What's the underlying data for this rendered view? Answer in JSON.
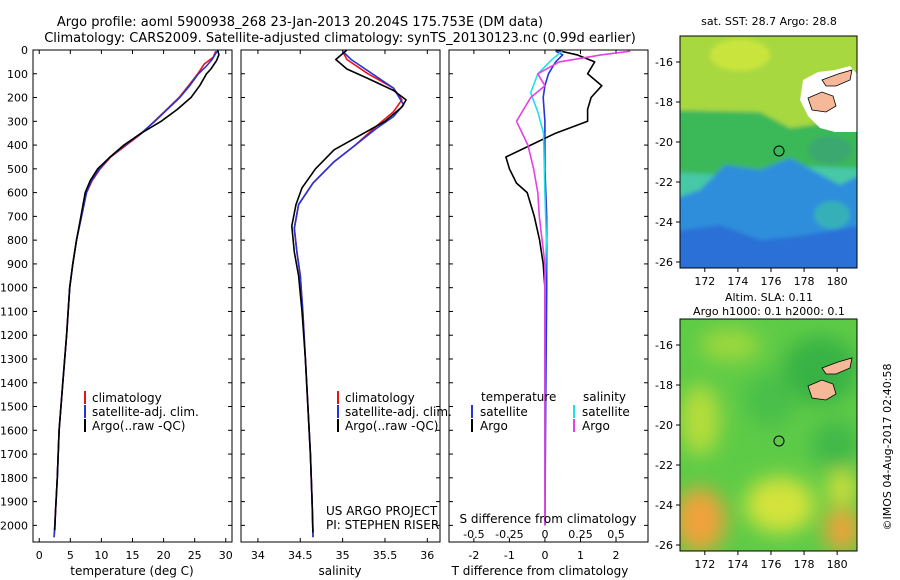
{
  "header": {
    "line1": "Argo profile: aoml 5900938_268 23-Jan-2013 20.204S 175.753E (DM data)",
    "line2": "Climatology: CARS2009. Satellite-adjusted climatology: synTS_20130123.nc (0.99d earlier)"
  },
  "footer_stamp": "©IMOS 04-Aug-2017 02:40:58",
  "colors": {
    "climatology": "#e8121b",
    "satellite": "#2434d8",
    "argo": "#000000",
    "sal_satellite": "#22e0e8",
    "sal_argo": "#e640e6",
    "land": "#f5b898"
  },
  "chart_data": [
    {
      "type": "line",
      "title": "",
      "xlabel": "temperature (deg C)",
      "ylabel": "",
      "xlim": [
        -1,
        31
      ],
      "ylim": [
        2070,
        0
      ],
      "x_ticks": [
        0,
        5,
        10,
        15,
        20,
        25,
        30
      ],
      "y_ticks": [
        0,
        100,
        200,
        300,
        400,
        500,
        600,
        700,
        800,
        900,
        1000,
        1100,
        1200,
        1300,
        1400,
        1500,
        1600,
        1700,
        1800,
        1900,
        2000
      ],
      "legend": [
        "climatology",
        "satellite-adj. clim.",
        "Argo(..raw -QC)"
      ],
      "series": [
        {
          "name": "climatology",
          "color": "#e8121b",
          "points": [
            [
              28.4,
              5
            ],
            [
              28.0,
              30
            ],
            [
              26.5,
              60
            ],
            [
              25.5,
              100
            ],
            [
              24.0,
              150
            ],
            [
              22.5,
              200
            ],
            [
              20.5,
              250
            ],
            [
              18.5,
              300
            ],
            [
              16.5,
              350
            ],
            [
              14.0,
              400
            ],
            [
              11.5,
              450
            ],
            [
              9.8,
              500
            ],
            [
              8.5,
              550
            ],
            [
              7.6,
              600
            ],
            [
              6.8,
              700
            ],
            [
              6.0,
              800
            ],
            [
              5.4,
              900
            ],
            [
              4.9,
              1000
            ],
            [
              4.4,
              1200
            ],
            [
              3.8,
              1400
            ],
            [
              3.2,
              1600
            ],
            [
              2.9,
              1800
            ],
            [
              2.5,
              2000
            ],
            [
              2.4,
              2050
            ]
          ]
        },
        {
          "name": "satellite-adj. clim.",
          "color": "#2434d8",
          "points": [
            [
              28.6,
              5
            ],
            [
              27.8,
              40
            ],
            [
              26.8,
              70
            ],
            [
              25.6,
              100
            ],
            [
              24.2,
              150
            ],
            [
              22.6,
              200
            ],
            [
              20.6,
              250
            ],
            [
              18.6,
              300
            ],
            [
              16.4,
              350
            ],
            [
              13.8,
              400
            ],
            [
              11.4,
              450
            ],
            [
              9.7,
              500
            ],
            [
              8.4,
              550
            ],
            [
              7.6,
              600
            ],
            [
              6.8,
              700
            ],
            [
              6.0,
              800
            ],
            [
              5.4,
              900
            ],
            [
              4.9,
              1000
            ],
            [
              4.4,
              1200
            ],
            [
              3.8,
              1400
            ],
            [
              3.2,
              1600
            ],
            [
              2.9,
              1800
            ],
            [
              2.5,
              2000
            ],
            [
              2.4,
              2050
            ]
          ]
        },
        {
          "name": "Argo(..raw -QC)",
          "color": "#000000",
          "points": [
            [
              28.7,
              0
            ],
            [
              28.9,
              20
            ],
            [
              28.5,
              45
            ],
            [
              27.6,
              80
            ],
            [
              26.9,
              100
            ],
            [
              25.8,
              150
            ],
            [
              24.4,
              200
            ],
            [
              22.2,
              250
            ],
            [
              19.6,
              300
            ],
            [
              16.4,
              350
            ],
            [
              13.6,
              400
            ],
            [
              11.4,
              450
            ],
            [
              9.4,
              500
            ],
            [
              8.2,
              550
            ],
            [
              7.4,
              600
            ],
            [
              6.7,
              700
            ],
            [
              6.0,
              800
            ],
            [
              5.4,
              900
            ],
            [
              4.9,
              1000
            ],
            [
              4.4,
              1200
            ],
            [
              3.8,
              1400
            ],
            [
              3.2,
              1600
            ],
            [
              2.9,
              1800
            ],
            [
              2.6,
              1950
            ],
            [
              2.5,
              2020
            ]
          ]
        }
      ]
    },
    {
      "type": "line",
      "title": "",
      "xlabel": "salinity",
      "ylabel": "",
      "xlim": [
        33.8,
        36.15
      ],
      "ylim": [
        2070,
        0
      ],
      "x_ticks": [
        34,
        34.5,
        35,
        35.5,
        36
      ],
      "legend": [
        "climatology",
        "satellite-adj. clim.",
        "Argo(..raw -QC)"
      ],
      "annotation": [
        "US ARGO PROJECT",
        "PI: STEPHEN RISER"
      ],
      "series": [
        {
          "name": "climatology",
          "color": "#e8121b",
          "points": [
            [
              35.0,
              5
            ],
            [
              35.05,
              40
            ],
            [
              35.3,
              100
            ],
            [
              35.6,
              160
            ],
            [
              35.7,
              210
            ],
            [
              35.6,
              260
            ],
            [
              35.4,
              320
            ],
            [
              35.15,
              400
            ],
            [
              34.9,
              470
            ],
            [
              34.65,
              560
            ],
            [
              34.48,
              650
            ],
            [
              34.43,
              750
            ],
            [
              34.46,
              850
            ],
            [
              34.5,
              950
            ],
            [
              34.53,
              1100
            ],
            [
              34.56,
              1300
            ],
            [
              34.59,
              1500
            ],
            [
              34.62,
              1700
            ],
            [
              34.64,
              1900
            ],
            [
              34.65,
              2050
            ]
          ]
        },
        {
          "name": "satellite-adj. clim.",
          "color": "#2434d8",
          "points": [
            [
              35.0,
              5
            ],
            [
              35.1,
              40
            ],
            [
              35.35,
              100
            ],
            [
              35.6,
              160
            ],
            [
              35.72,
              230
            ],
            [
              35.6,
              280
            ],
            [
              35.4,
              330
            ],
            [
              35.15,
              400
            ],
            [
              34.9,
              470
            ],
            [
              34.65,
              560
            ],
            [
              34.48,
              650
            ],
            [
              34.43,
              750
            ],
            [
              34.46,
              850
            ],
            [
              34.5,
              950
            ],
            [
              34.53,
              1100
            ],
            [
              34.56,
              1300
            ],
            [
              34.59,
              1500
            ],
            [
              34.62,
              1700
            ],
            [
              34.64,
              1900
            ],
            [
              34.65,
              2050
            ]
          ]
        },
        {
          "name": "Argo(..raw -QC)",
          "color": "#000000",
          "points": [
            [
              35.05,
              0
            ],
            [
              34.92,
              40
            ],
            [
              35.05,
              80
            ],
            [
              35.3,
              120
            ],
            [
              35.6,
              170
            ],
            [
              35.75,
              210
            ],
            [
              35.7,
              240
            ],
            [
              35.5,
              300
            ],
            [
              35.2,
              360
            ],
            [
              34.9,
              420
            ],
            [
              34.68,
              500
            ],
            [
              34.52,
              580
            ],
            [
              34.45,
              650
            ],
            [
              34.4,
              740
            ],
            [
              34.43,
              850
            ],
            [
              34.48,
              950
            ],
            [
              34.52,
              1100
            ],
            [
              34.56,
              1300
            ],
            [
              34.59,
              1500
            ],
            [
              34.62,
              1700
            ],
            [
              34.64,
              1900
            ],
            [
              34.65,
              2030
            ]
          ]
        }
      ]
    },
    {
      "type": "line",
      "title": "",
      "xlabel": "T difference from climatology",
      "x2label": "S difference from climatology",
      "ylabel": "",
      "xlim": [
        -2.7,
        2.9
      ],
      "x2lim": [
        -0.675,
        0.725
      ],
      "ylim": [
        2070,
        0
      ],
      "x_ticks": [
        -2,
        -1,
        0,
        1,
        2
      ],
      "x2_ticks": [
        "-0.5",
        "-0.25",
        "0",
        "0.25",
        "0.5"
      ],
      "legend_header": [
        "temperature",
        "salinity"
      ],
      "legend": [
        "satellite",
        "Argo",
        "satellite",
        "Argo"
      ],
      "series": [
        {
          "name": "temperature satellite",
          "color": "#2434d8",
          "points": [
            [
              0.3,
              5
            ],
            [
              0.5,
              20
            ],
            [
              0.3,
              50
            ],
            [
              0.1,
              100
            ],
            [
              0.0,
              150
            ],
            [
              -0.05,
              200
            ],
            [
              0.0,
              300
            ],
            [
              0.0,
              500
            ],
            [
              0.05,
              700
            ],
            [
              0.05,
              1000
            ],
            [
              0.02,
              1500
            ],
            [
              0.0,
              2000
            ]
          ]
        },
        {
          "name": "temperature Argo",
          "color": "#000000",
          "points": [
            [
              0.3,
              0
            ],
            [
              0.9,
              20
            ],
            [
              1.4,
              50
            ],
            [
              1.2,
              100
            ],
            [
              1.6,
              150
            ],
            [
              1.3,
              200
            ],
            [
              1.2,
              250
            ],
            [
              1.2,
              300
            ],
            [
              0.3,
              350
            ],
            [
              -0.4,
              400
            ],
            [
              -1.1,
              450
            ],
            [
              -1.0,
              500
            ],
            [
              -0.8,
              560
            ],
            [
              -0.5,
              600
            ],
            [
              -0.3,
              700
            ],
            [
              -0.15,
              800
            ],
            [
              -0.05,
              900
            ],
            [
              0.0,
              1000
            ],
            [
              0.0,
              1500
            ],
            [
              0.0,
              2000
            ]
          ]
        },
        {
          "name": "salinity satellite",
          "color": "#22e0e8",
          "points": [
            [
              0.12,
              5
            ],
            [
              0.05,
              40
            ],
            [
              -0.05,
              100
            ],
            [
              -0.1,
              180
            ],
            [
              -0.05,
              260
            ],
            [
              -0.01,
              350
            ],
            [
              0.0,
              600
            ],
            [
              0.01,
              800
            ],
            [
              0.0,
              1000
            ],
            [
              0.0,
              1500
            ],
            [
              0.0,
              2000
            ]
          ]
        },
        {
          "name": "salinity Argo",
          "color": "#e640e6",
          "points": [
            [
              0.6,
              5
            ],
            [
              0.4,
              20
            ],
            [
              0.1,
              50
            ],
            [
              -0.05,
              100
            ],
            [
              0.0,
              150
            ],
            [
              -0.1,
              200
            ],
            [
              -0.2,
              300
            ],
            [
              -0.12,
              400
            ],
            [
              -0.08,
              500
            ],
            [
              -0.05,
              600
            ],
            [
              -0.04,
              700
            ],
            [
              -0.02,
              800
            ],
            [
              0.0,
              900
            ],
            [
              0.0,
              1000
            ],
            [
              0.0,
              1500
            ],
            [
              0.0,
              2000
            ]
          ]
        }
      ]
    },
    {
      "type": "heatmap",
      "title": "sat. SST: 28.7 Argo: 28.8",
      "xlim": [
        170.5,
        181.2
      ],
      "ylim": [
        -26.3,
        -14.7
      ],
      "x_ticks": [
        172,
        174,
        176,
        178,
        180
      ],
      "y_ticks": [
        -16,
        -18,
        -20,
        -22,
        -24,
        -26
      ],
      "marker": {
        "lon": 175.753,
        "lat": -20.204
      }
    },
    {
      "type": "heatmap",
      "title": "Altim. SLA: 0.11",
      "subtitle": "Argo h1000: 0.1 h2000: 0.1",
      "xlim": [
        170.5,
        181.2
      ],
      "ylim": [
        -26.3,
        -14.7
      ],
      "x_ticks": [
        172,
        174,
        176,
        178,
        180
      ],
      "y_ticks": [
        -16,
        -18,
        -20,
        -22,
        -24,
        -26
      ],
      "marker": {
        "lon": 175.753,
        "lat": -20.204
      }
    }
  ]
}
